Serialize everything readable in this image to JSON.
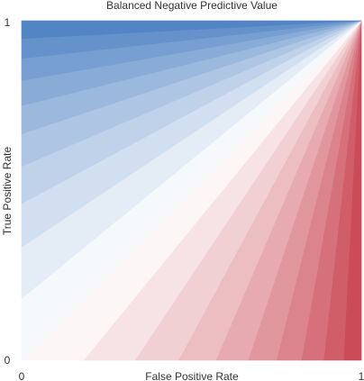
{
  "chart_data": {
    "type": "area",
    "title": "Balanced Negative Predictive Value",
    "xlabel": "False Positive Rate",
    "ylabel": "True Positive Rate",
    "xlim": [
      0,
      1
    ],
    "ylim": [
      0,
      1
    ],
    "x_tick_labels": [
      "0",
      "1"
    ],
    "y_tick_labels": [
      "0",
      "1"
    ],
    "grid": false,
    "legend": "none",
    "contour_levels": [
      0,
      0.05,
      0.1,
      0.15,
      0.2,
      0.25,
      0.3,
      0.35,
      0.4,
      0.45,
      0.5,
      0.55,
      0.6,
      0.65,
      0.7,
      0.75,
      0.8,
      0.85,
      0.9,
      0.95,
      1
    ],
    "colors": {
      "high": "#4a7fc1",
      "mid": "#ffffff",
      "low": "#c8414f"
    }
  }
}
